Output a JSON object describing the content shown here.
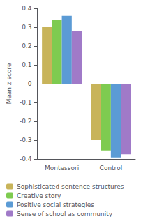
{
  "chart_data": {
    "type": "bar",
    "categories": [
      "Montessori",
      "Control"
    ],
    "series": [
      {
        "name": "Sophisticated sentence structures",
        "color": "#c8b45a",
        "values": [
          0.3,
          -0.3
        ]
      },
      {
        "name": "Creative story",
        "color": "#7ecb50",
        "values": [
          0.34,
          -0.355
        ]
      },
      {
        "name": "Positive social strategies",
        "color": "#5b9bd5",
        "values": [
          0.36,
          -0.395
        ]
      },
      {
        "name": "Sense of school as community",
        "color": "#a07ac8",
        "values": [
          0.28,
          -0.375
        ]
      }
    ],
    "ylabel": "Mean z score",
    "ylim": [
      -0.4,
      0.4
    ],
    "yticks": [
      -0.4,
      -0.3,
      -0.2,
      -0.1,
      0,
      0.1,
      0.2,
      0.3,
      0.4
    ],
    "grid": false,
    "legend": "bottom"
  }
}
